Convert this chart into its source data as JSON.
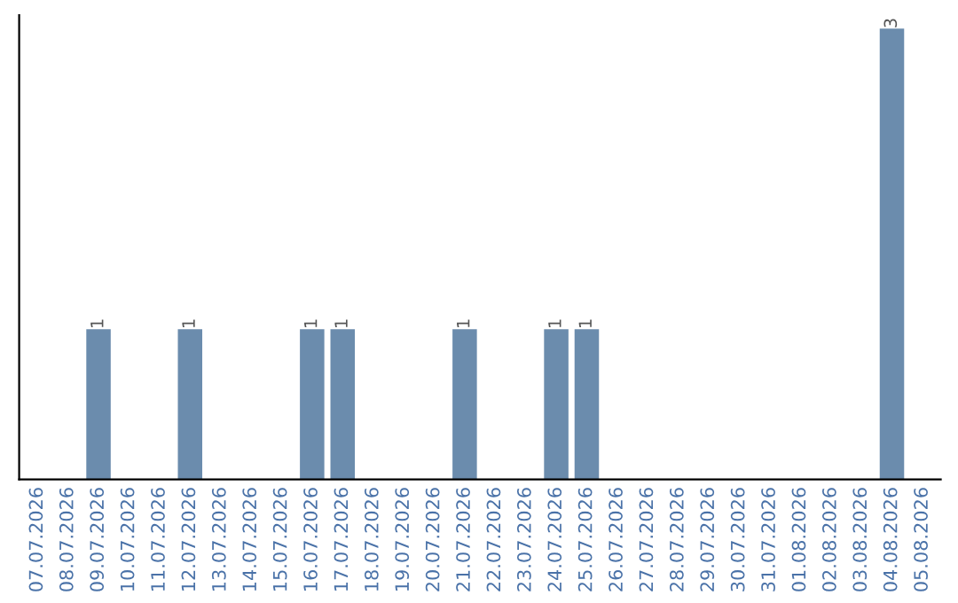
{
  "chart_data": {
    "type": "bar",
    "categories": [
      "07.07.2026",
      "08.07.2026",
      "09.07.2026",
      "10.07.2026",
      "11.07.2026",
      "12.07.2026",
      "13.07.2026",
      "14.07.2026",
      "15.07.2026",
      "16.07.2026",
      "17.07.2026",
      "18.07.2026",
      "19.07.2026",
      "20.07.2026",
      "21.07.2026",
      "22.07.2026",
      "23.07.2026",
      "24.07.2026",
      "25.07.2026",
      "26.07.2026",
      "27.07.2026",
      "28.07.2026",
      "29.07.2026",
      "30.07.2026",
      "31.07.2026",
      "01.08.2026",
      "02.08.2026",
      "03.08.2026",
      "04.08.2026",
      "05.08.2026"
    ],
    "values": [
      0,
      0,
      1,
      0,
      0,
      1,
      0,
      0,
      0,
      1,
      1,
      0,
      0,
      0,
      1,
      0,
      0,
      1,
      1,
      0,
      0,
      0,
      0,
      0,
      0,
      0,
      0,
      0,
      3,
      0
    ],
    "value_labels": [
      null,
      null,
      "1",
      null,
      null,
      "1",
      null,
      null,
      null,
      "1",
      "1",
      null,
      null,
      null,
      "1",
      null,
      null,
      "1",
      "1",
      null,
      null,
      null,
      null,
      null,
      null,
      null,
      null,
      null,
      "3",
      null
    ],
    "color": "#6b8cad",
    "grid": false,
    "legend": false,
    "tick_labels": "x"
  }
}
